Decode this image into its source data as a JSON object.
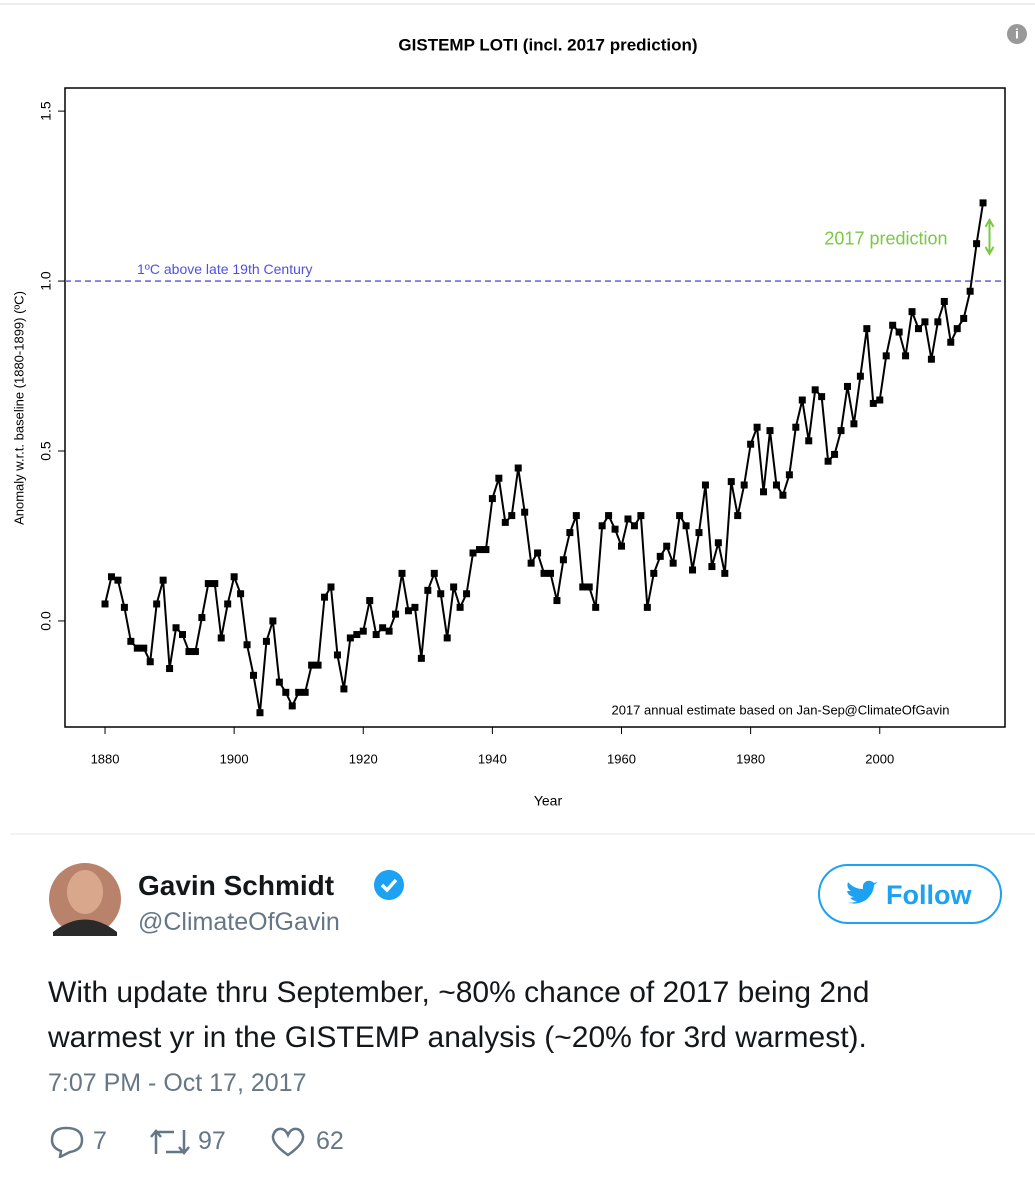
{
  "chart_data": {
    "type": "line",
    "title": "GISTEMP LOTI (incl. 2017 prediction)",
    "x_label": "Year",
    "y_label": "Anomaly w.r.t. baseline (1880-1899) (ºC)",
    "note": "2017 annual estimate based on Jan-Sep.",
    "credit": "@ClimateOfGavin",
    "xlim": [
      1873.8,
      2019.4
    ],
    "ylim": [
      -0.312,
      1.568
    ],
    "xticks": [
      1880,
      1900,
      1920,
      1940,
      1960,
      1980,
      2000
    ],
    "yticks": [
      {
        "value": 0,
        "label": "0.0"
      },
      0.5,
      {
        "value": 1,
        "label": "1.0"
      },
      {
        "value": 1.5,
        "label": "1.5"
      }
    ],
    "hline": {
      "value": 1,
      "label": "1ºC above late 19th Century",
      "color": "#5050e0"
    },
    "series": [
      {
        "color": "#000000",
        "x": [
          1880,
          1881,
          1882,
          1883,
          1884,
          1885,
          1886,
          1887,
          1888,
          1889,
          1890,
          1891,
          1892,
          1893,
          1894,
          1895,
          1896,
          1897,
          1898,
          1899,
          1900,
          1901,
          1902,
          1903,
          1904,
          1905,
          1906,
          1907,
          1908,
          1909,
          1910,
          1911,
          1912,
          1913,
          1914,
          1915,
          1916,
          1917,
          1918,
          1919,
          1920,
          1921,
          1922,
          1923,
          1924,
          1925,
          1926,
          1927,
          1928,
          1929,
          1930,
          1931,
          1932,
          1933,
          1934,
          1935,
          1936,
          1937,
          1938,
          1939,
          1940,
          1941,
          1942,
          1943,
          1944,
          1945,
          1946,
          1947,
          1948,
          1949,
          1950,
          1951,
          1952,
          1953,
          1954,
          1955,
          1956,
          1957,
          1958,
          1959,
          1960,
          1961,
          1962,
          1963,
          1964,
          1965,
          1966,
          1967,
          1968,
          1969,
          1970,
          1971,
          1972,
          1973,
          1974,
          1975,
          1976,
          1977,
          1978,
          1979,
          1980,
          1981,
          1982,
          1983,
          1984,
          1985,
          1986,
          1987,
          1988,
          1989,
          1990,
          1991,
          1992,
          1993,
          1994,
          1995,
          1996,
          1997,
          1998,
          1999,
          2000,
          2001,
          2002,
          2003,
          2004,
          2005,
          2006,
          2007,
          2008,
          2009,
          2010,
          2011,
          2012,
          2013,
          2014,
          2015,
          2016
        ],
        "values": [
          0.05,
          0.13,
          0.12,
          0.04,
          -0.06,
          -0.08,
          -0.08,
          -0.12,
          0.05,
          0.12,
          -0.14,
          -0.02,
          -0.04,
          -0.09,
          -0.09,
          0.01,
          0.11,
          0.11,
          -0.05,
          0.05,
          0.13,
          0.08,
          -0.07,
          -0.16,
          -0.27,
          -0.06,
          0.0,
          -0.18,
          -0.21,
          -0.25,
          -0.21,
          -0.21,
          -0.13,
          -0.13,
          0.07,
          0.1,
          -0.1,
          -0.2,
          -0.05,
          -0.04,
          -0.03,
          0.06,
          -0.04,
          -0.02,
          -0.03,
          0.02,
          0.14,
          0.03,
          0.04,
          -0.11,
          0.09,
          0.14,
          0.08,
          -0.05,
          0.1,
          0.04,
          0.08,
          0.2,
          0.21,
          0.21,
          0.36,
          0.42,
          0.29,
          0.31,
          0.45,
          0.32,
          0.17,
          0.2,
          0.14,
          0.14,
          0.06,
          0.18,
          0.26,
          0.31,
          0.1,
          0.1,
          0.04,
          0.28,
          0.31,
          0.27,
          0.22,
          0.3,
          0.28,
          0.31,
          0.04,
          0.14,
          0.19,
          0.22,
          0.17,
          0.31,
          0.28,
          0.15,
          0.26,
          0.4,
          0.16,
          0.23,
          0.14,
          0.41,
          0.31,
          0.4,
          0.52,
          0.57,
          0.38,
          0.56,
          0.4,
          0.37,
          0.43,
          0.57,
          0.65,
          0.53,
          0.68,
          0.66,
          0.47,
          0.49,
          0.56,
          0.69,
          0.58,
          0.72,
          0.86,
          0.64,
          0.65,
          0.78,
          0.87,
          0.85,
          0.78,
          0.91,
          0.86,
          0.88,
          0.77,
          0.88,
          0.94,
          0.82,
          0.86,
          0.89,
          0.97,
          1.11,
          1.23
        ]
      },
      {
        "name": "2017 prediction",
        "color": "#7ac943",
        "x": [
          2017
        ],
        "values": [
          1.13
        ],
        "error": [
          0.05
        ]
      }
    ]
  },
  "tweet": {
    "name": "Gavin Schmidt",
    "handle": "@ClimateOfGavin",
    "follow": "Follow",
    "text": "With update thru September, ~80% chance of 2017 being 2nd warmest yr in the GISTEMP analysis (~20% for 3rd warmest).",
    "time": "7:07 PM - Oct 17, 2017",
    "replies": "7",
    "retweets": "97",
    "likes": "62"
  }
}
